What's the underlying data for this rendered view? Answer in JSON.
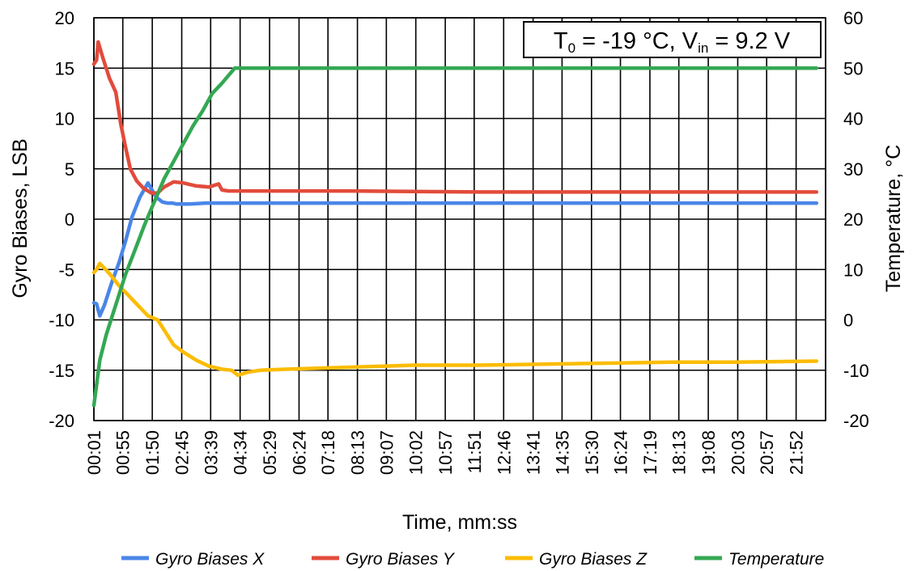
{
  "chart_data": {
    "type": "line",
    "title": "",
    "annotation": {
      "prefix": "T",
      "sub1": "0",
      "middle": " = -19 °C, V",
      "sub2": "in",
      "suffix": " = 9.2 V"
    },
    "xlabel": "Time, mm:ss",
    "ylabel_left": "Gyro Biases, LSB",
    "ylabel_right": "Temperature, °C",
    "ylim_left": [
      -20,
      20
    ],
    "ylim_right": [
      -20,
      60
    ],
    "yticks_left": [
      -20,
      -15,
      -10,
      -5,
      0,
      5,
      10,
      15,
      20
    ],
    "yticks_right": [
      -20,
      -10,
      0,
      10,
      20,
      30,
      40,
      50,
      60
    ],
    "xticks": [
      "00:01",
      "00:55",
      "01:50",
      "02:45",
      "03:39",
      "04:34",
      "05:29",
      "06:24",
      "07:18",
      "08:13",
      "09:07",
      "10:02",
      "10:57",
      "11:51",
      "12:46",
      "13:41",
      "14:35",
      "15:30",
      "16:24",
      "17:19",
      "18:13",
      "19:08",
      "20:03",
      "20:57",
      "21:52"
    ],
    "x_unit_minutes": [
      0.0167,
      0.9167,
      1.8333,
      2.75,
      3.65,
      4.5667,
      5.4833,
      6.4,
      7.3,
      8.2167,
      9.1167,
      10.0333,
      10.95,
      11.85,
      12.7667,
      13.6833,
      14.5833,
      15.5,
      16.4,
      17.3167,
      18.2167,
      19.1333,
      20.05,
      20.95,
      21.8667
    ],
    "xlim_minutes": [
      0.0167,
      22.7833
    ],
    "grid": true,
    "legend_position": "bottom",
    "series": [
      {
        "name": "Gyro Biases X",
        "axis": "left",
        "color": "#4a86e8",
        "x": [
          0.0167,
          0.1,
          0.2,
          0.35,
          0.55,
          0.8,
          1.0,
          1.2,
          1.45,
          1.7,
          1.95,
          2.15,
          2.3,
          2.45,
          2.6,
          3.0,
          3.5,
          4.0,
          5.0,
          6.0,
          8.0,
          10.0,
          14.0,
          18.0,
          22.5
        ],
        "values": [
          -8.3,
          -8.4,
          -9.6,
          -8.5,
          -6.5,
          -4.3,
          -2.2,
          0.2,
          2.2,
          3.6,
          2.2,
          1.7,
          1.6,
          1.6,
          1.5,
          1.5,
          1.6,
          1.6,
          1.6,
          1.6,
          1.6,
          1.6,
          1.6,
          1.6,
          1.6
        ]
      },
      {
        "name": "Gyro Biases Y",
        "axis": "left",
        "color": "#e24b3b",
        "x": [
          0.0167,
          0.1,
          0.15,
          0.3,
          0.5,
          0.7,
          0.85,
          1.0,
          1.15,
          1.35,
          1.55,
          1.8,
          2.0,
          2.2,
          2.5,
          2.8,
          3.2,
          3.6,
          3.9,
          4.0,
          4.2,
          5.0,
          6.0,
          8.0,
          12.0,
          16.0,
          20.0,
          22.5
        ],
        "values": [
          15.4,
          15.8,
          17.6,
          16.0,
          14.0,
          12.6,
          9.5,
          7.2,
          5.0,
          3.8,
          3.1,
          2.6,
          2.6,
          3.2,
          3.7,
          3.6,
          3.3,
          3.2,
          3.5,
          2.9,
          2.8,
          2.8,
          2.8,
          2.8,
          2.7,
          2.7,
          2.7,
          2.7
        ]
      },
      {
        "name": "Gyro Biases Z",
        "axis": "left",
        "color": "#fbbc04",
        "x": [
          0.0167,
          0.1,
          0.2,
          0.5,
          0.8,
          1.1,
          1.4,
          1.7,
          2.0,
          2.3,
          2.5,
          2.8,
          3.2,
          3.6,
          4.0,
          4.3,
          4.5,
          4.8,
          5.2,
          6.0,
          7.0,
          8.0,
          9.0,
          10.0,
          12.0,
          14.0,
          16.0,
          18.0,
          20.0,
          22.5
        ],
        "values": [
          -5.3,
          -5.0,
          -4.4,
          -5.4,
          -6.6,
          -7.6,
          -8.6,
          -9.6,
          -10.0,
          -11.5,
          -12.5,
          -13.2,
          -14.0,
          -14.6,
          -14.9,
          -15.0,
          -15.5,
          -15.2,
          -15.0,
          -14.9,
          -14.8,
          -14.7,
          -14.6,
          -14.5,
          -14.5,
          -14.4,
          -14.3,
          -14.2,
          -14.2,
          -14.1
        ]
      },
      {
        "name": "Temperature",
        "axis": "right",
        "color": "#34a853",
        "x": [
          0.0167,
          0.2,
          0.4,
          0.7,
          1.0,
          1.3,
          1.6,
          1.9,
          2.2,
          2.5,
          2.8,
          3.1,
          3.4,
          3.7,
          4.0,
          4.2,
          4.4,
          4.5,
          5.0,
          8.0,
          12.0,
          16.0,
          20.0,
          22.5
        ],
        "values": [
          -17.0,
          -8.0,
          -3.0,
          3.0,
          9.0,
          14.0,
          19.0,
          23.5,
          28.0,
          31.5,
          35.0,
          38.5,
          41.5,
          45.0,
          47.0,
          48.5,
          50.0,
          50.0,
          50.0,
          50.0,
          50.0,
          50.0,
          50.0,
          50.0
        ]
      }
    ]
  }
}
